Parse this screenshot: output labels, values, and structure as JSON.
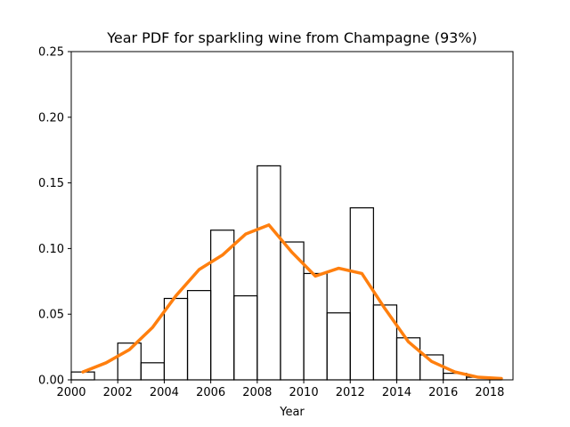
{
  "chart_data": {
    "type": "histogram_with_line",
    "title": "Year PDF for sparkling wine from Champagne (93%)",
    "xlabel": "Year",
    "ylabel": "",
    "xlim": [
      2000,
      19000
    ],
    "ylim": [
      0,
      0.25
    ],
    "grid": false,
    "x_ticks": [
      2000,
      2002,
      2004,
      2006,
      2008,
      2010,
      2012,
      2014,
      2016,
      2018
    ],
    "y_ticks": [
      0.0,
      0.05,
      0.1,
      0.15,
      0.2,
      0.25
    ],
    "y_tick_labels": [
      "0.00",
      "0.05",
      "0.10",
      "0.15",
      "0.20",
      "0.25"
    ],
    "histogram": {
      "bin_edges": [
        2000,
        2001,
        2002,
        2003,
        2004,
        2005,
        2006,
        2007,
        2008,
        2009,
        2010,
        2011,
        2012,
        2013,
        2014,
        2015,
        2016,
        2017,
        2018,
        2018.5
      ],
      "values": [
        0.006,
        0.0,
        0.028,
        0.013,
        0.062,
        0.068,
        0.114,
        0.064,
        0.163,
        0.105,
        0.081,
        0.051,
        0.131,
        0.057,
        0.032,
        0.019,
        0.005,
        0.002,
        0.001
      ],
      "color": "#000000"
    },
    "line": {
      "x": [
        2000.5,
        2001.5,
        2002.5,
        2003.5,
        2004.5,
        2005.5,
        2006.5,
        2007.5,
        2008.5,
        2009.5,
        2010.5,
        2011.5,
        2012.5,
        2013.5,
        2014.5,
        2015.5,
        2016.5,
        2017.5,
        2018.5
      ],
      "y": [
        0.006,
        0.013,
        0.023,
        0.04,
        0.064,
        0.084,
        0.095,
        0.111,
        0.118,
        0.097,
        0.079,
        0.085,
        0.081,
        0.054,
        0.029,
        0.014,
        0.006,
        0.002,
        0.001
      ],
      "color": "#ff7f0e"
    }
  }
}
